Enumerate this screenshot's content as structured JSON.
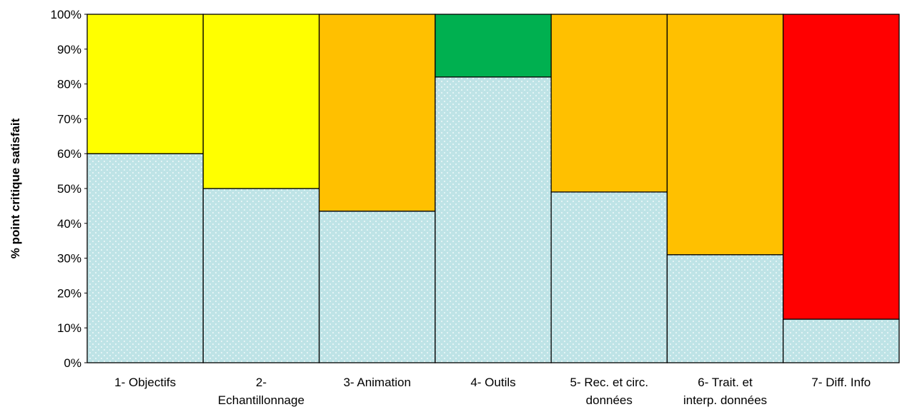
{
  "chart_data": {
    "type": "bar",
    "stacked": true,
    "title": "",
    "xlabel": "",
    "ylabel": "% point critique satisfait",
    "ylim": [
      0,
      100
    ],
    "y_ticks": [
      "0%",
      "10%",
      "20%",
      "30%",
      "40%",
      "50%",
      "60%",
      "70%",
      "80%",
      "90%",
      "100%"
    ],
    "grid": false,
    "legend": "none",
    "categories": [
      [
        "1- Objectifs"
      ],
      [
        "2-",
        "Echantillonnage"
      ],
      [
        "3- Animation"
      ],
      [
        "4- Outils"
      ],
      [
        "5- Rec. et circ.",
        "données"
      ],
      [
        "6- Trait. et",
        "interp. données"
      ],
      [
        "7- Diff. Info"
      ]
    ],
    "series": [
      {
        "values": [
          60,
          50,
          43.5,
          82,
          49,
          31,
          12.5
        ],
        "color": "#BEE3E6",
        "pattern": "dotted"
      },
      {
        "values": [
          40,
          50,
          56.5,
          18,
          51,
          69,
          87.5
        ],
        "colors": [
          "#FFFF00",
          "#FFFF00",
          "#FFC000",
          "#00B050",
          "#FFC000",
          "#FFC000",
          "#FF0000"
        ]
      }
    ]
  }
}
